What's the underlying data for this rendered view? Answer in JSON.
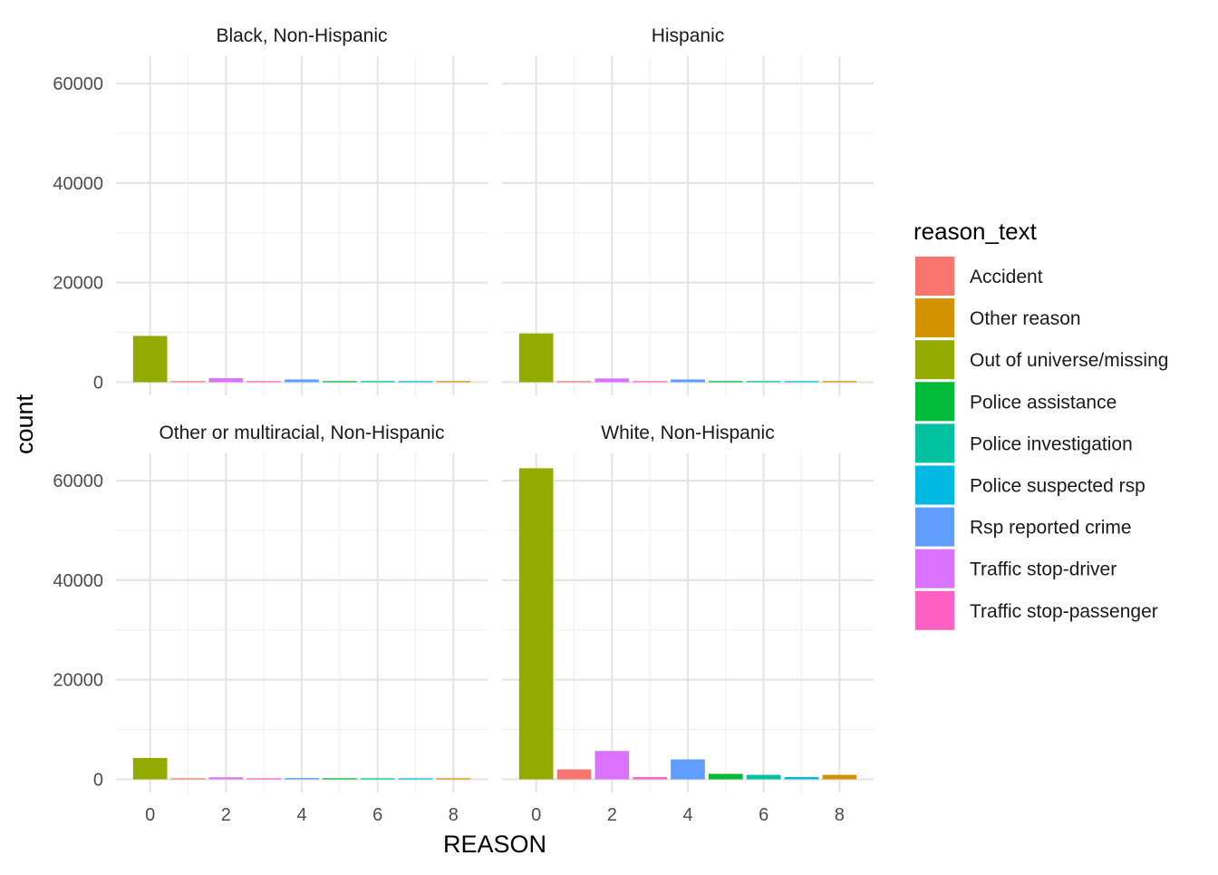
{
  "chart_data": {
    "type": "bar",
    "facet_layout": "2x2 grid, shared y axis, free x per row",
    "xlabel": "REASON",
    "ylabel": "count",
    "ylim": [
      0,
      65000
    ],
    "y_ticks": [
      0,
      20000,
      40000,
      60000
    ],
    "x_ticks": [
      0,
      2,
      4,
      6,
      8
    ],
    "x_categories": [
      0,
      1,
      2,
      3,
      4,
      5,
      6,
      7,
      8
    ],
    "grid": true,
    "legend": {
      "title": "reason_text",
      "placement": "right",
      "entries": [
        {
          "label": "Accident",
          "color": "#F8766D",
          "reason": 1
        },
        {
          "label": "Other reason",
          "color": "#D39200",
          "reason": 8
        },
        {
          "label": "Out of universe/missing",
          "color": "#93AA00",
          "reason": 0
        },
        {
          "label": "Police assistance",
          "color": "#00BA38",
          "reason": 5
        },
        {
          "label": "Police investigation",
          "color": "#00C19F",
          "reason": 6
        },
        {
          "label": "Police suspected rsp",
          "color": "#00B9E3",
          "reason": 7
        },
        {
          "label": "Rsp reported crime",
          "color": "#619CFF",
          "reason": 4
        },
        {
          "label": "Traffic stop-driver",
          "color": "#DB72FB",
          "reason": 2
        },
        {
          "label": "Traffic stop-passenger",
          "color": "#FF61C3",
          "reason": 3
        }
      ]
    },
    "facets": [
      {
        "title": "Black, Non-Hispanic",
        "values": [
          9300,
          200,
          800,
          150,
          550,
          200,
          200,
          100,
          200
        ]
      },
      {
        "title": "Hispanic",
        "values": [
          9800,
          200,
          750,
          150,
          550,
          200,
          200,
          100,
          200
        ]
      },
      {
        "title": "Other or multiracial, Non-Hispanic",
        "values": [
          4300,
          150,
          400,
          100,
          250,
          100,
          100,
          50,
          100
        ]
      },
      {
        "title": "White, Non-Hispanic",
        "values": [
          62500,
          2000,
          5700,
          450,
          4000,
          1100,
          900,
          450,
          900
        ]
      }
    ]
  }
}
